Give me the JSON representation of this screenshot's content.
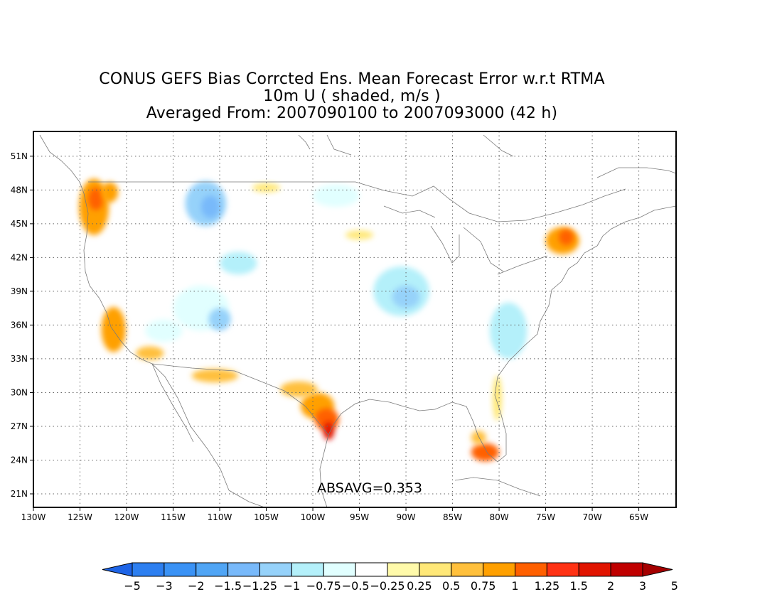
{
  "title": {
    "line1": "CONUS GEFS Bias Corrcted Ens. Mean Forecast Error w.r.t RTMA",
    "line2": "10m U ( shaded, m/s )",
    "line3": "Averaged From: 2007090100 to 2007093000 (42 h)"
  },
  "stat": {
    "text": "ABSAVG=0.353"
  },
  "map": {
    "lon_range": [
      -130,
      -61
    ],
    "lat_range": [
      19.8,
      53.2
    ],
    "lat_ticks": [
      {
        "value": 51,
        "label": "51N"
      },
      {
        "value": 48,
        "label": "48N"
      },
      {
        "value": 45,
        "label": "45N"
      },
      {
        "value": 42,
        "label": "42N"
      },
      {
        "value": 39,
        "label": "39N"
      },
      {
        "value": 36,
        "label": "36N"
      },
      {
        "value": 33,
        "label": "33N"
      },
      {
        "value": 30,
        "label": "30N"
      },
      {
        "value": 27,
        "label": "27N"
      },
      {
        "value": 24,
        "label": "24N"
      },
      {
        "value": 21,
        "label": "21N"
      }
    ],
    "lon_ticks": [
      {
        "value": -130,
        "label": "130W"
      },
      {
        "value": -125,
        "label": "125W"
      },
      {
        "value": -120,
        "label": "120W"
      },
      {
        "value": -115,
        "label": "115W"
      },
      {
        "value": -110,
        "label": "110W"
      },
      {
        "value": -105,
        "label": "105W"
      },
      {
        "value": -100,
        "label": "100W"
      },
      {
        "value": -95,
        "label": "95W"
      },
      {
        "value": -90,
        "label": "90W"
      },
      {
        "value": -85,
        "label": "85W"
      },
      {
        "value": -80,
        "label": "80W"
      },
      {
        "value": -75,
        "label": "75W"
      },
      {
        "value": -70,
        "label": "70W"
      },
      {
        "value": -65,
        "label": "65W"
      }
    ],
    "grid": "dotted",
    "field_patches": [
      {
        "lon": -123.5,
        "lat": 46.5,
        "rlon": 1.6,
        "rlat": 2.5,
        "value": 0.9
      },
      {
        "lon": -123.3,
        "lat": 47.2,
        "rlon": 0.8,
        "rlat": 1.0,
        "value": 1.1
      },
      {
        "lon": -121.8,
        "lat": 47.8,
        "rlon": 0.9,
        "rlat": 0.9,
        "value": 0.8
      },
      {
        "lon": -121.4,
        "lat": 35.6,
        "rlon": 1.3,
        "rlat": 2.0,
        "value": 0.9
      },
      {
        "lon": -117.5,
        "lat": 33.5,
        "rlon": 1.5,
        "rlat": 0.6,
        "value": 0.6
      },
      {
        "lon": -99.5,
        "lat": 28.8,
        "rlon": 1.8,
        "rlat": 1.2,
        "value": 0.8
      },
      {
        "lon": -98.5,
        "lat": 27.6,
        "rlon": 1.3,
        "rlat": 1.0,
        "value": 1.2
      },
      {
        "lon": -98.3,
        "lat": 26.6,
        "rlon": 0.6,
        "rlat": 0.8,
        "value": 1.6
      },
      {
        "lon": -101.5,
        "lat": 30.3,
        "rlon": 2.0,
        "rlat": 0.7,
        "value": 0.5
      },
      {
        "lon": -81.5,
        "lat": 24.7,
        "rlon": 1.5,
        "rlat": 0.8,
        "value": 1.0
      },
      {
        "lon": -82.2,
        "lat": 26.0,
        "rlon": 0.8,
        "rlat": 0.6,
        "value": 0.6
      },
      {
        "lon": -80.2,
        "lat": 29.5,
        "rlon": 0.5,
        "rlat": 2.0,
        "value": 0.45
      },
      {
        "lon": -73.2,
        "lat": 43.5,
        "rlon": 1.8,
        "rlat": 1.2,
        "value": 0.8
      },
      {
        "lon": -72.8,
        "lat": 43.8,
        "rlon": 0.8,
        "rlat": 0.7,
        "value": 1.1
      },
      {
        "lon": -110.5,
        "lat": 31.5,
        "rlon": 2.5,
        "rlat": 0.6,
        "value": 0.5
      },
      {
        "lon": -105.0,
        "lat": 48.2,
        "rlon": 1.5,
        "rlat": 0.4,
        "value": 0.4
      },
      {
        "lon": -95.0,
        "lat": 44.0,
        "rlon": 1.5,
        "rlat": 0.4,
        "value": 0.4
      },
      {
        "lon": -111.5,
        "lat": 46.8,
        "rlon": 2.2,
        "rlat": 2.0,
        "value": -1.1
      },
      {
        "lon": -111.0,
        "lat": 46.5,
        "rlon": 1.0,
        "rlat": 1.0,
        "value": -1.4
      },
      {
        "lon": -97.5,
        "lat": 47.5,
        "rlon": 2.5,
        "rlat": 1.0,
        "value": -0.6
      },
      {
        "lon": -108.0,
        "lat": 41.5,
        "rlon": 2.0,
        "rlat": 1.0,
        "value": -0.8
      },
      {
        "lon": -112.0,
        "lat": 37.5,
        "rlon": 3.0,
        "rlat": 2.0,
        "value": -0.7
      },
      {
        "lon": -110.0,
        "lat": 36.5,
        "rlon": 1.2,
        "rlat": 1.0,
        "value": -1.2
      },
      {
        "lon": -116.0,
        "lat": 35.5,
        "rlon": 2.0,
        "rlat": 1.0,
        "value": -0.7
      },
      {
        "lon": -114.5,
        "lat": 40.5,
        "rlon": 1.5,
        "rlat": 1.0,
        "value": -0.5
      },
      {
        "lon": -90.5,
        "lat": 39.0,
        "rlon": 3.0,
        "rlat": 2.2,
        "value": -0.9
      },
      {
        "lon": -90.0,
        "lat": 38.5,
        "rlon": 1.5,
        "rlat": 1.0,
        "value": -1.2
      },
      {
        "lon": -79.0,
        "lat": 35.5,
        "rlon": 2.0,
        "rlat": 2.5,
        "value": -0.8
      },
      {
        "lon": -85.0,
        "lat": 34.5,
        "rlon": 2.5,
        "rlat": 1.2,
        "value": -0.5
      },
      {
        "lon": -97.0,
        "lat": 41.0,
        "rlon": 2.0,
        "rlat": 1.5,
        "value": -0.5
      },
      {
        "lon": -89.5,
        "lat": 30.8,
        "rlon": 2.0,
        "rlat": 0.6,
        "value": -0.5
      },
      {
        "lon": -120.5,
        "lat": 41.5,
        "rlon": 1.5,
        "rlat": 1.0,
        "value": -0.4
      },
      {
        "lon": -86.0,
        "lat": 44.5,
        "rlon": 1.5,
        "rlat": 1.0,
        "value": -0.3
      },
      {
        "lon": -93.5,
        "lat": 35.0,
        "rlon": 3.0,
        "rlat": 1.5,
        "value": -0.3
      }
    ]
  },
  "colorbar": {
    "colors": [
      "#1e64e6",
      "#2d7ff0",
      "#3a92f5",
      "#50a5f5",
      "#78b9fa",
      "#96d2fa",
      "#b4f0fa",
      "#e1ffff",
      "#ffffff",
      "#fffaaa",
      "#ffe878",
      "#ffc03c",
      "#ffa000",
      "#ff6000",
      "#ff3214",
      "#e11400",
      "#c00000",
      "#a50000"
    ],
    "levels": [
      "-5",
      "-3",
      "-2",
      "-1.5",
      "-1.25",
      "-1",
      "-0.75",
      "-0.5",
      "-0.25",
      "0.25",
      "0.5",
      "0.75",
      "1",
      "1.25",
      "1.5",
      "2",
      "3",
      "5"
    ],
    "level_values": [
      -5,
      -3,
      -2,
      -1.5,
      -1.25,
      -1,
      -0.75,
      -0.5,
      -0.25,
      0.25,
      0.5,
      0.75,
      1,
      1.25,
      1.5,
      2,
      3,
      5
    ]
  }
}
